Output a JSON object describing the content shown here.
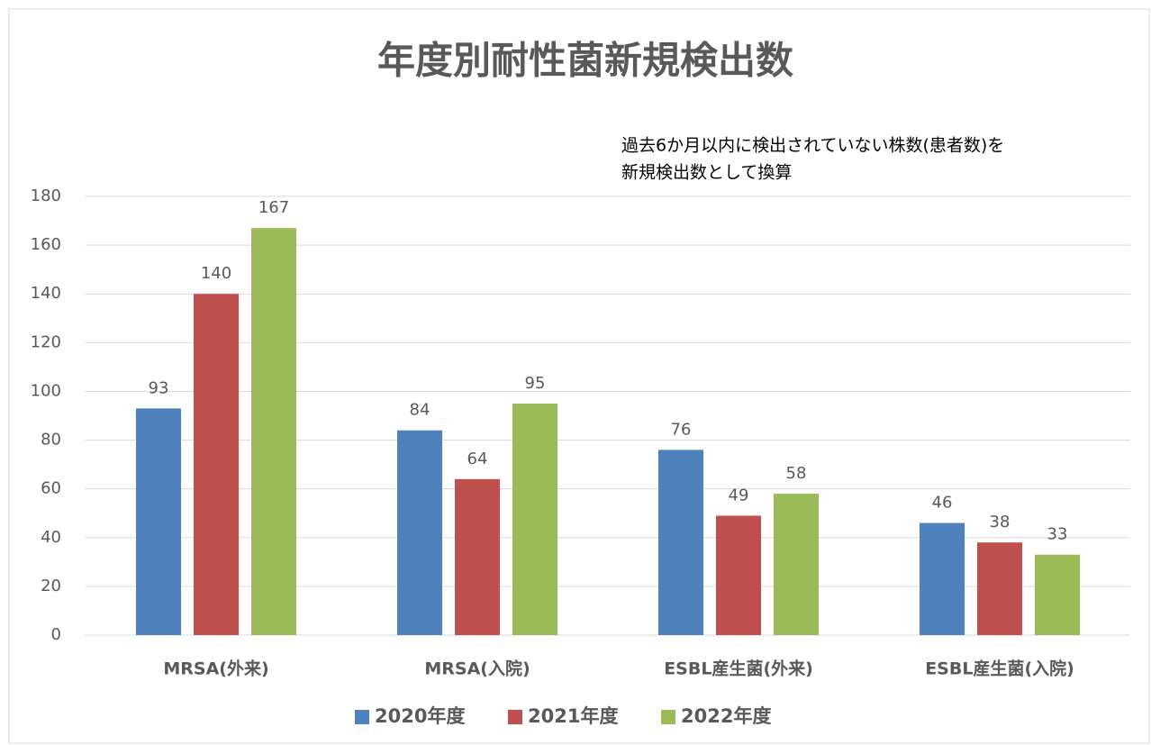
{
  "chart_data": {
    "type": "bar",
    "title": "年度別耐性菌新規検出数",
    "annotation": [
      "過去6か月以内に検出されていない株数(患者数)を",
      "新規検出数として換算"
    ],
    "categories": [
      "MRSA(外来)",
      "MRSA(入院)",
      "ESBL産生菌(外来)",
      "ESBL産生菌(入院)"
    ],
    "series": [
      {
        "name": "2020年度",
        "color": "#4f81bd",
        "values": [
          93,
          84,
          76,
          46
        ]
      },
      {
        "name": "2021年度",
        "color": "#c0504d",
        "values": [
          140,
          64,
          49,
          38
        ]
      },
      {
        "name": "2022年度",
        "color": "#9bbb59",
        "values": [
          167,
          95,
          58,
          33
        ]
      }
    ],
    "ylim": [
      0,
      180
    ],
    "yticks": [
      0,
      20,
      40,
      60,
      80,
      100,
      120,
      140,
      160,
      180
    ],
    "grid": true,
    "legend": "bottom"
  }
}
